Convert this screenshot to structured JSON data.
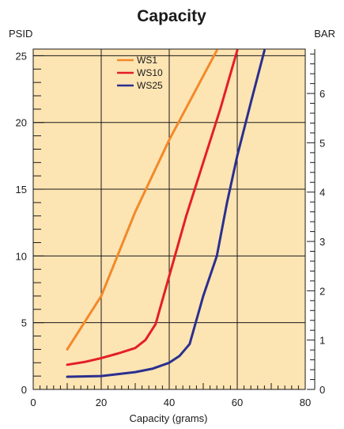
{
  "chart_data": {
    "type": "line",
    "title": "Capacity",
    "xlabel": "Capacity (grams)",
    "ylabel_left": "PSID",
    "ylabel_right": "BAR",
    "xlim": [
      0,
      80
    ],
    "ylim_left": [
      0,
      25.5
    ],
    "ylim_right_bar": [
      0,
      6.9
    ],
    "x_ticks": [
      0,
      20,
      40,
      60,
      80
    ],
    "x_tick_labels": [
      "0",
      "20",
      "40",
      "60",
      "80"
    ],
    "y_left_ticks": [
      0,
      5,
      10,
      15,
      20,
      25
    ],
    "y_left_tick_labels": [
      "0",
      "5",
      "10",
      "15",
      "20",
      "25"
    ],
    "y_right_ticks": [
      0,
      1,
      2,
      3,
      4,
      5,
      6
    ],
    "y_right_tick_labels": [
      "0",
      "1",
      "2",
      "3",
      "4",
      "5",
      "6"
    ],
    "grid": true,
    "background_color": "#fde4b3",
    "legend_position": "top-left",
    "series": [
      {
        "name": "WS1",
        "color": "#f2892a",
        "points": [
          [
            10,
            3.0
          ],
          [
            20,
            7.0
          ],
          [
            30,
            13.3
          ],
          [
            40,
            18.7
          ],
          [
            54,
            25.4
          ]
        ]
      },
      {
        "name": "WS10",
        "color": "#e41f26",
        "points": [
          [
            10,
            1.85
          ],
          [
            15,
            2.05
          ],
          [
            20,
            2.35
          ],
          [
            25,
            2.7
          ],
          [
            30,
            3.1
          ],
          [
            33,
            3.7
          ],
          [
            36,
            4.9
          ],
          [
            40,
            8.5
          ],
          [
            45,
            13.0
          ],
          [
            50,
            17.0
          ],
          [
            55,
            21.0
          ],
          [
            60,
            25.4
          ]
        ]
      },
      {
        "name": "WS25",
        "color": "#2b2f8f",
        "points": [
          [
            10,
            0.95
          ],
          [
            20,
            1.0
          ],
          [
            25,
            1.15
          ],
          [
            30,
            1.3
          ],
          [
            35,
            1.55
          ],
          [
            40,
            2.0
          ],
          [
            43,
            2.5
          ],
          [
            46,
            3.4
          ],
          [
            50,
            7.0
          ],
          [
            54,
            10.0
          ],
          [
            57,
            14.0
          ],
          [
            60,
            17.5
          ],
          [
            64,
            21.5
          ],
          [
            68,
            25.4
          ]
        ]
      }
    ]
  }
}
